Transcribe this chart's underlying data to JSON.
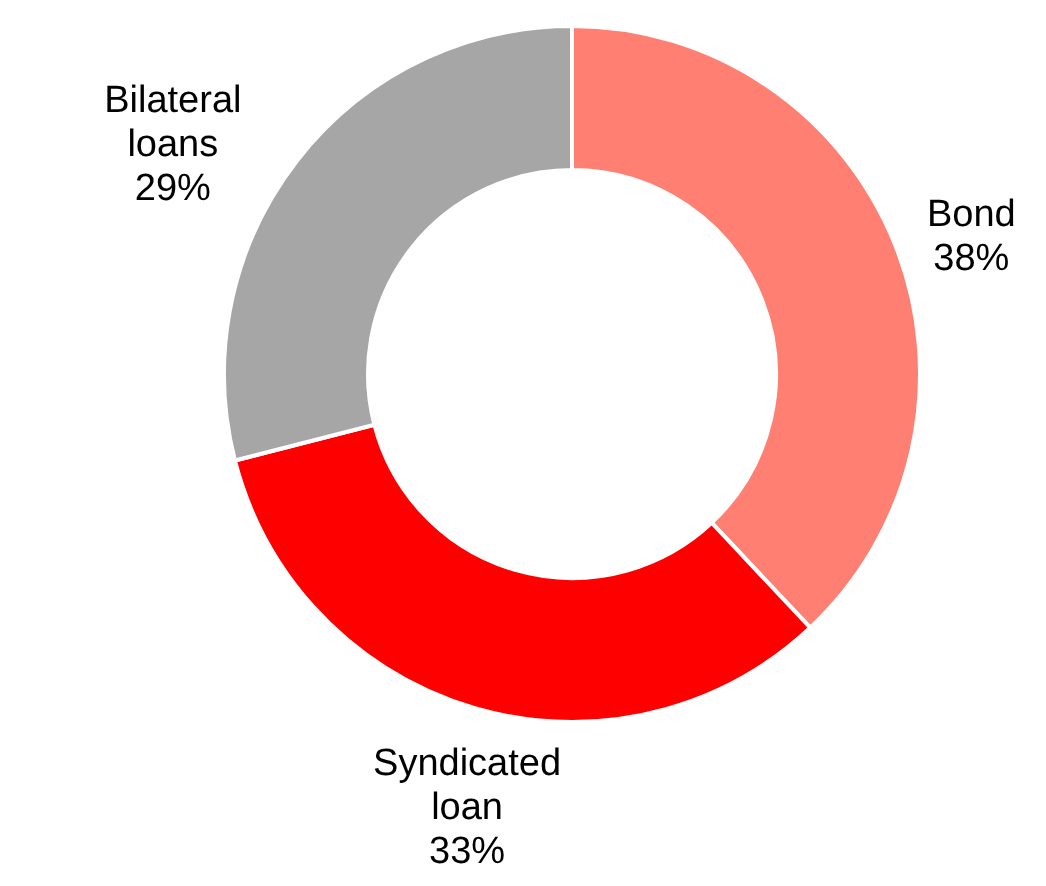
{
  "chart_data": {
    "type": "donut",
    "categories": [
      "Bond",
      "Syndicated loan",
      "Bilateral loans"
    ],
    "values": [
      38,
      33,
      29
    ],
    "value_labels": [
      "38%",
      "33%",
      "29%"
    ],
    "colors": [
      "#ff7f72",
      "#ff0000",
      "#a6a6a6"
    ],
    "legend": false
  }
}
